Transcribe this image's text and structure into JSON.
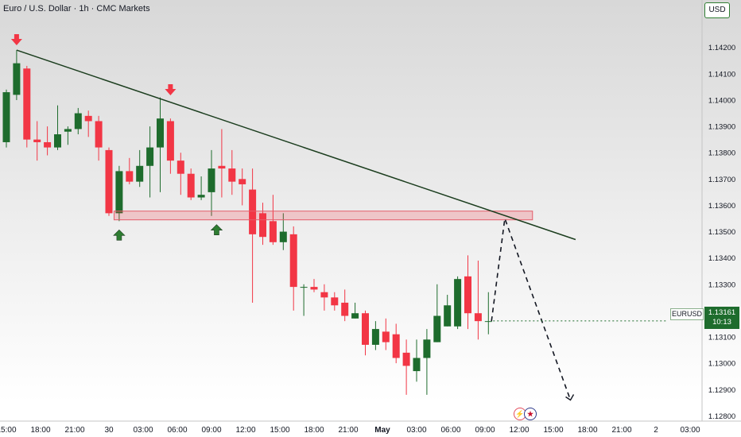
{
  "title": "Euro / U.S. Dollar · 1h · CMC Markets",
  "currency": "USD",
  "ticker": "EURUSD",
  "last_price": "1.13161",
  "countdown": "10:13",
  "event_icons": [
    "flash-icon",
    "us-flag-icon"
  ],
  "colors": {
    "up": "#1e6c2d",
    "down": "#f23645",
    "trendline": "#1b3d1e",
    "zone_fill": "rgba(242,54,69,0.22)",
    "zone_border": "#e35d6a",
    "sell_arrow": "#f23645",
    "buy_arrow": "#2e7d32"
  },
  "chart_data": {
    "type": "candlestick",
    "symbol": "EURUSD",
    "timeframe": "1h",
    "ylim": [
      1.1278,
      1.1432
    ],
    "y_ticks": [
      "1.14200",
      "1.14100",
      "1.14000",
      "1.13900",
      "1.13800",
      "1.13700",
      "1.13600",
      "1.13500",
      "1.13400",
      "1.13300",
      "1.13200",
      "1.13100",
      "1.13000",
      "1.12900",
      "1.12800"
    ],
    "x_ticks": [
      "15:00",
      "18:00",
      "21:00",
      "30",
      "03:00",
      "06:00",
      "09:00",
      "12:00",
      "15:00",
      "18:00",
      "21:00",
      "May",
      "03:00",
      "06:00",
      "09:00",
      "12:00",
      "15:00",
      "18:00",
      "21:00",
      "2",
      "03:00"
    ],
    "candles": [
      {
        "o": 1.1384,
        "h": 1.1404,
        "l": 1.1382,
        "c": 1.1403
      },
      {
        "o": 1.1402,
        "h": 1.1419,
        "l": 1.14,
        "c": 1.1414
      },
      {
        "o": 1.1412,
        "h": 1.1413,
        "l": 1.1382,
        "c": 1.1385
      },
      {
        "o": 1.1385,
        "h": 1.1392,
        "l": 1.1377,
        "c": 1.1384
      },
      {
        "o": 1.1384,
        "h": 1.139,
        "l": 1.1379,
        "c": 1.1382
      },
      {
        "o": 1.1382,
        "h": 1.1398,
        "l": 1.1381,
        "c": 1.1387
      },
      {
        "o": 1.1388,
        "h": 1.139,
        "l": 1.1383,
        "c": 1.1389
      },
      {
        "o": 1.1389,
        "h": 1.1397,
        "l": 1.1387,
        "c": 1.1395
      },
      {
        "o": 1.1394,
        "h": 1.1396,
        "l": 1.1386,
        "c": 1.1392
      },
      {
        "o": 1.1392,
        "h": 1.1394,
        "l": 1.1377,
        "c": 1.1382
      },
      {
        "o": 1.1381,
        "h": 1.1382,
        "l": 1.1356,
        "c": 1.1357
      },
      {
        "o": 1.1357,
        "h": 1.1375,
        "l": 1.1354,
        "c": 1.1373
      },
      {
        "o": 1.1373,
        "h": 1.1378,
        "l": 1.1368,
        "c": 1.1369
      },
      {
        "o": 1.1369,
        "h": 1.1381,
        "l": 1.1367,
        "c": 1.1375
      },
      {
        "o": 1.1375,
        "h": 1.139,
        "l": 1.1363,
        "c": 1.1382
      },
      {
        "o": 1.1382,
        "h": 1.1401,
        "l": 1.1365,
        "c": 1.1393
      },
      {
        "o": 1.1392,
        "h": 1.1393,
        "l": 1.1372,
        "c": 1.1377
      },
      {
        "o": 1.1377,
        "h": 1.138,
        "l": 1.1364,
        "c": 1.1372
      },
      {
        "o": 1.1372,
        "h": 1.1374,
        "l": 1.1362,
        "c": 1.1363
      },
      {
        "o": 1.1363,
        "h": 1.1371,
        "l": 1.1362,
        "c": 1.1364
      },
      {
        "o": 1.1365,
        "h": 1.1381,
        "l": 1.1356,
        "c": 1.1374
      },
      {
        "o": 1.1375,
        "h": 1.1389,
        "l": 1.1363,
        "c": 1.1374
      },
      {
        "o": 1.1374,
        "h": 1.1381,
        "l": 1.1364,
        "c": 1.1369
      },
      {
        "o": 1.137,
        "h": 1.1374,
        "l": 1.136,
        "c": 1.1368
      },
      {
        "o": 1.1366,
        "h": 1.1374,
        "l": 1.1323,
        "c": 1.1349
      },
      {
        "o": 1.1357,
        "h": 1.1361,
        "l": 1.1345,
        "c": 1.1348
      },
      {
        "o": 1.1354,
        "h": 1.1364,
        "l": 1.1345,
        "c": 1.1346
      },
      {
        "o": 1.1346,
        "h": 1.1357,
        "l": 1.1343,
        "c": 1.135
      },
      {
        "o": 1.1349,
        "h": 1.1352,
        "l": 1.132,
        "c": 1.1329
      },
      {
        "o": 1.1329,
        "h": 1.133,
        "l": 1.1318,
        "c": 1.1329
      },
      {
        "o": 1.1329,
        "h": 1.1332,
        "l": 1.1327,
        "c": 1.1328
      },
      {
        "o": 1.1327,
        "h": 1.133,
        "l": 1.132,
        "c": 1.1325
      },
      {
        "o": 1.1325,
        "h": 1.1327,
        "l": 1.132,
        "c": 1.1322
      },
      {
        "o": 1.1323,
        "h": 1.1328,
        "l": 1.1316,
        "c": 1.1318
      },
      {
        "o": 1.1317,
        "h": 1.1323,
        "l": 1.1317,
        "c": 1.1319
      },
      {
        "o": 1.1319,
        "h": 1.132,
        "l": 1.1303,
        "c": 1.1307
      },
      {
        "o": 1.1307,
        "h": 1.1316,
        "l": 1.1305,
        "c": 1.1313
      },
      {
        "o": 1.1312,
        "h": 1.1317,
        "l": 1.1305,
        "c": 1.1308
      },
      {
        "o": 1.1311,
        "h": 1.1315,
        "l": 1.13,
        "c": 1.1302
      },
      {
        "o": 1.1304,
        "h": 1.1309,
        "l": 1.1288,
        "c": 1.1299
      },
      {
        "o": 1.1297,
        "h": 1.1309,
        "l": 1.1293,
        "c": 1.1302
      },
      {
        "o": 1.1302,
        "h": 1.1313,
        "l": 1.1288,
        "c": 1.1309
      },
      {
        "o": 1.1308,
        "h": 1.133,
        "l": 1.1308,
        "c": 1.1318
      },
      {
        "o": 1.1314,
        "h": 1.1326,
        "l": 1.1314,
        "c": 1.1322
      },
      {
        "o": 1.1314,
        "h": 1.1333,
        "l": 1.1313,
        "c": 1.1332
      },
      {
        "o": 1.1333,
        "h": 1.1341,
        "l": 1.1313,
        "c": 1.1319
      },
      {
        "o": 1.1319,
        "h": 1.1339,
        "l": 1.1309,
        "c": 1.1316
      },
      {
        "o": 1.1316,
        "h": 1.1327,
        "l": 1.1311,
        "c": 1.1316
      }
    ],
    "annotations": {
      "trendline": {
        "from": [
          1,
          1.1419
        ],
        "to": [
          55.5,
          1.1347
        ]
      },
      "resistance_zone": {
        "from_index": 10.5,
        "to_index": 51.3,
        "y_top": 1.1356,
        "y_bottom": 1.1352
      },
      "projection": [
        [
          47.3,
          1.1316
        ],
        [
          48.6,
          1.1355
        ],
        [
          55,
          1.1286
        ]
      ],
      "sell_arrows": [
        [
          1,
          1.1419
        ],
        [
          16,
          1.14
        ]
      ],
      "buy_arrows": [
        [
          11,
          1.1354
        ],
        [
          20.5,
          1.1356
        ]
      ]
    }
  }
}
